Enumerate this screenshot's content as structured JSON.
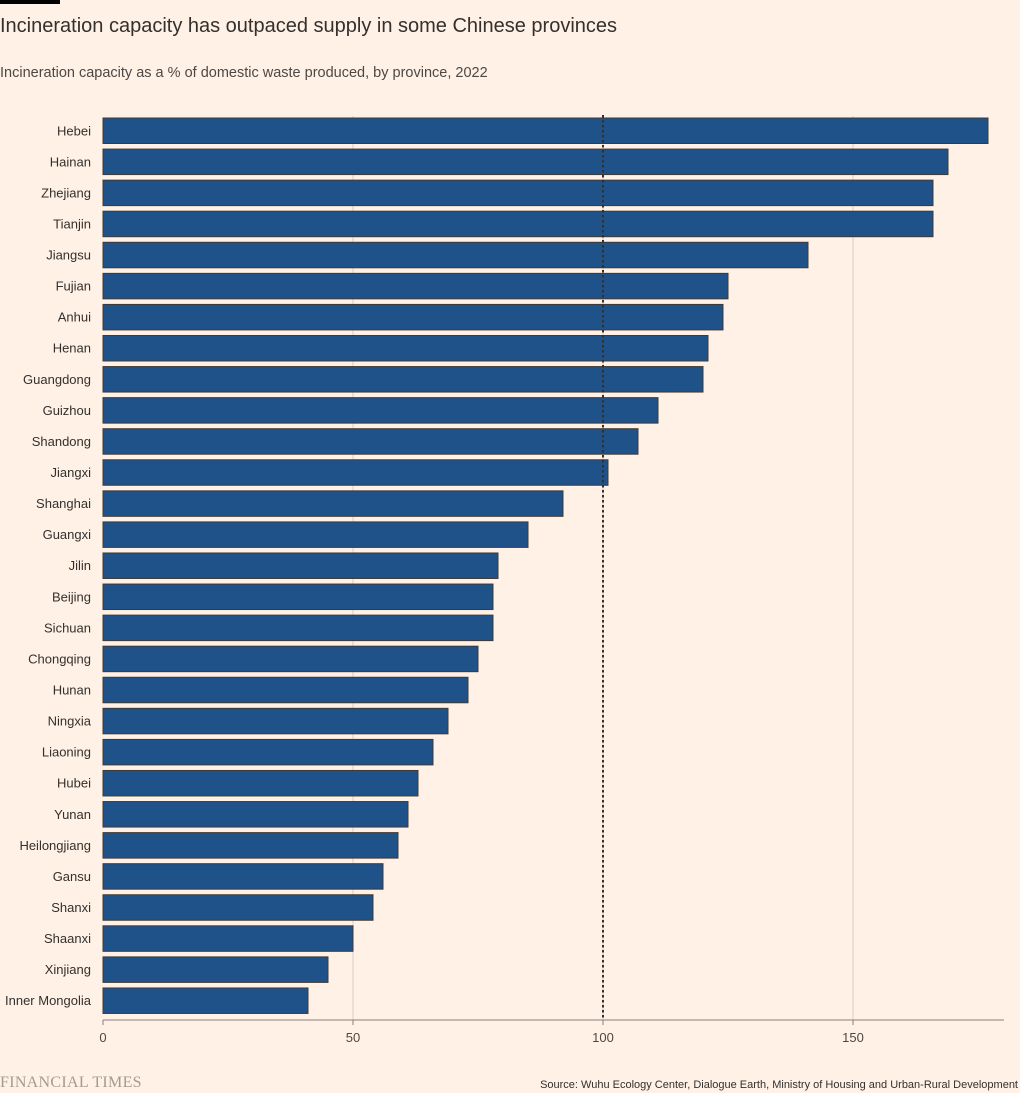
{
  "header": {
    "title": "Incineration capacity has outpaced supply in some Chinese provinces",
    "subtitle": "Incineration capacity as a % of domestic waste produced, by province, 2022"
  },
  "footer": {
    "logo": "FINANCIAL TIMES",
    "source": "Source: Wuhu Ecology Center, Dialogue Earth, Ministry of Housing and Urban-Rural Development"
  },
  "colors": {
    "background": "#fff1e5",
    "bar": "#1f5289",
    "bar_edge": "#3f3a38",
    "grid": "#d9cfc6",
    "reference_line": "#33302e"
  },
  "chart_data": {
    "type": "bar",
    "orientation": "horizontal",
    "categories": [
      "Hebei",
      "Hainan",
      "Zhejiang",
      "Tianjin",
      "Jiangsu",
      "Fujian",
      "Anhui",
      "Henan",
      "Guangdong",
      "Guizhou",
      "Shandong",
      "Jiangxi",
      "Shanghai",
      "Guangxi",
      "Jilin",
      "Beijing",
      "Sichuan",
      "Chongqing",
      "Hunan",
      "Ningxia",
      "Liaoning",
      "Hubei",
      "Yunan",
      "Heilongjiang",
      "Gansu",
      "Shanxi",
      "Shaanxi",
      "Xinjiang",
      "Inner Mongolia"
    ],
    "values": [
      177,
      169,
      166,
      166,
      141,
      125,
      124,
      121,
      120,
      111,
      107,
      101,
      92,
      85,
      79,
      78,
      78,
      75,
      73,
      69,
      66,
      63,
      61,
      59,
      56,
      54,
      50,
      45,
      41
    ],
    "xlim": [
      0,
      180
    ],
    "xticks": [
      0,
      50,
      100,
      150
    ],
    "reference_line": 100,
    "grid": true
  }
}
